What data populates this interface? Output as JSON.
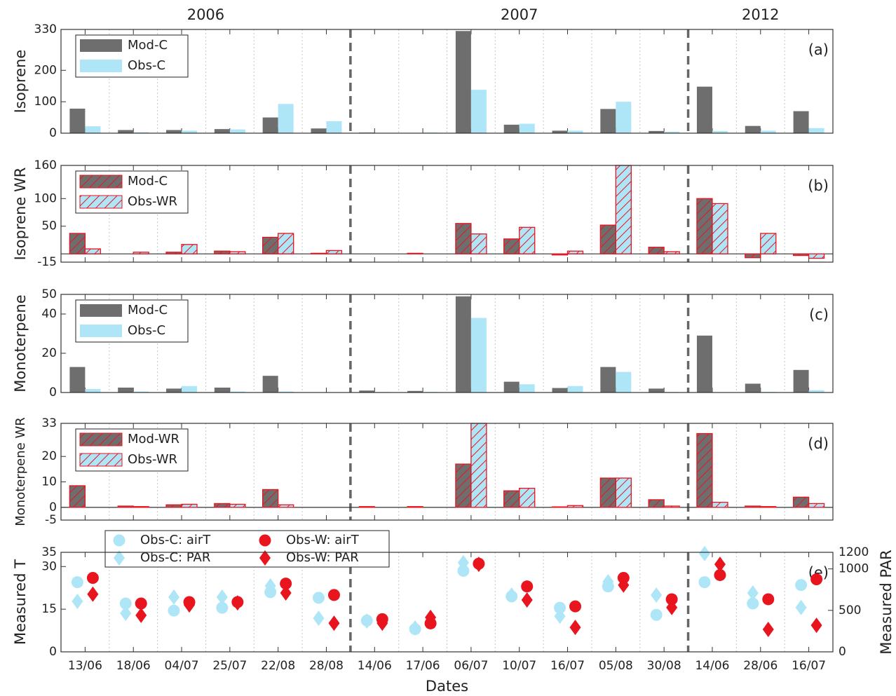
{
  "x_axis": {
    "label": "Dates",
    "year_labels": [
      "2006",
      "2007",
      "2012"
    ],
    "categories": [
      "13/06",
      "18/06",
      "04/07",
      "25/07",
      "22/08",
      "28/08",
      "14/06",
      "17/06",
      "06/07",
      "10/07",
      "16/07",
      "05/08",
      "30/08",
      "14/06",
      "28/06",
      "16/07"
    ]
  },
  "chart_data": [
    {
      "type": "bar",
      "ylabel": "Isoprene",
      "annotation": "(a)",
      "ylim": [
        0,
        330
      ],
      "yticks": [
        0,
        100,
        200,
        330
      ],
      "series": [
        {
          "name": "Mod-C",
          "color": "#6e6e6e",
          "values": [
            78,
            10,
            10,
            13,
            50,
            15,
            2,
            1,
            325,
            27,
            8,
            77,
            7,
            148,
            23,
            70
          ]
        },
        {
          "name": "Obs-C",
          "color": "#aee6f7",
          "values": [
            22,
            3,
            8,
            12,
            93,
            38,
            1,
            2,
            138,
            30,
            8,
            100,
            5,
            7,
            8,
            16
          ]
        }
      ]
    },
    {
      "type": "bar",
      "ylabel": "Isoprene WR",
      "annotation": "(b)",
      "ylim": [
        -15,
        160
      ],
      "yticks": [
        -15,
        50,
        100,
        160
      ],
      "hatch": true,
      "edgecolor": "#e8141e",
      "series": [
        {
          "name": "Mod-C",
          "color": "#6e6e6e",
          "values": [
            37,
            0,
            3,
            5,
            30,
            1,
            0,
            1,
            55,
            27,
            -2,
            52,
            12,
            100,
            -7,
            -3
          ]
        },
        {
          "name": "Obs-WR",
          "color": "#aee6f7",
          "values": [
            9,
            3,
            17,
            4,
            37,
            6,
            0,
            0,
            36,
            48,
            5,
            160,
            4,
            91,
            37,
            -8
          ]
        }
      ]
    },
    {
      "type": "bar",
      "ylabel": "Monoterpene",
      "annotation": "(c)",
      "ylim": [
        0,
        50
      ],
      "yticks": [
        0,
        20,
        40,
        50
      ],
      "series": [
        {
          "name": "Mod-C",
          "color": "#6e6e6e",
          "values": [
            13,
            2.5,
            2,
            2.5,
            8.5,
            0,
            1,
            0.8,
            49,
            5.5,
            2.3,
            13,
            2,
            29,
            4.5,
            11.5
          ]
        },
        {
          "name": "Obs-C",
          "color": "#aee6f7",
          "values": [
            1.8,
            0.5,
            3.3,
            0.5,
            0.5,
            0,
            0.3,
            0.3,
            38,
            4.2,
            3.3,
            10.5,
            0.3,
            0,
            0.3,
            1.2
          ]
        }
      ]
    },
    {
      "type": "bar",
      "ylabel": "Monoterpene WR",
      "annotation": "(d)",
      "ylim": [
        -5,
        33
      ],
      "yticks": [
        -5,
        0,
        10,
        20,
        33
      ],
      "hatch": true,
      "edgecolor": "#e8141e",
      "series": [
        {
          "name": "Mod-WR",
          "color": "#6e6e6e",
          "values": [
            8.5,
            0.5,
            1,
            1.5,
            7,
            0,
            0.3,
            0.3,
            17,
            6.5,
            0.2,
            11.5,
            3,
            29,
            0.5,
            4
          ]
        },
        {
          "name": "Obs-WR",
          "color": "#aee6f7",
          "values": [
            0,
            0.3,
            1.2,
            1.2,
            1,
            0,
            0,
            0,
            33,
            7.5,
            0.7,
            11.5,
            0.5,
            2,
            0.3,
            1.5
          ]
        }
      ]
    },
    {
      "type": "scatter",
      "ylabel": "Measured T",
      "y2label": "Measured PAR",
      "annotation": "(e)",
      "ylim": [
        0,
        35
      ],
      "yticks": [
        0,
        15,
        30,
        35
      ],
      "y2lim": [
        0,
        1200
      ],
      "y2ticks": [
        0,
        500,
        1000,
        1200
      ],
      "series": [
        {
          "name": "Obs-C: airT",
          "color": "#aee6f7",
          "marker": "circle",
          "values": [
            24.5,
            17,
            14.5,
            15.5,
            21,
            19,
            11,
            8,
            28.5,
            19.5,
            15.5,
            23,
            13,
            24.5,
            17,
            23.5
          ]
        },
        {
          "name": "Obs-C: PAR",
          "color": "#aee6f7",
          "marker": "diamond",
          "axis": "y2",
          "values": [
            608,
            465,
            660,
            660,
            795,
            405,
            372,
            288,
            1075,
            685,
            430,
            845,
            685,
            1185,
            710,
            535
          ]
        },
        {
          "name": "Obs-W: airT",
          "color": "#e8141e",
          "marker": "circle",
          "values": [
            26,
            17,
            17.5,
            17.5,
            24,
            20,
            11.5,
            10,
            31,
            23,
            16,
            26,
            18.5,
            27,
            18.5,
            25.5
          ]
        },
        {
          "name": "Obs-W: PAR",
          "color": "#e8141e",
          "marker": "diamond",
          "axis": "y2",
          "values": [
            695,
            440,
            565,
            590,
            710,
            345,
            345,
            415,
            1055,
            625,
            295,
            805,
            535,
            1055,
            270,
            320
          ]
        }
      ]
    }
  ]
}
